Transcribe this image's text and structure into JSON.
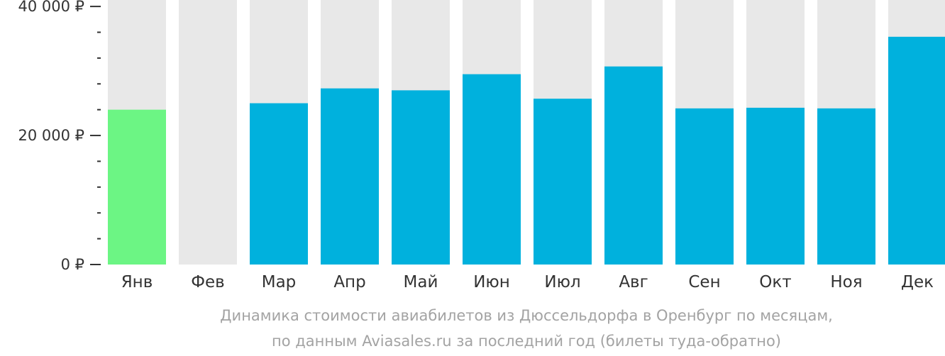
{
  "chart_data": {
    "type": "bar",
    "categories": [
      "Янв",
      "Фев",
      "Мар",
      "Апр",
      "Май",
      "Июн",
      "Июл",
      "Авг",
      "Сен",
      "Окт",
      "Ноя",
      "Дек"
    ],
    "values": [
      24000,
      null,
      25000,
      27300,
      27000,
      29500,
      25700,
      30700,
      24200,
      24300,
      24200,
      35300
    ],
    "highlight_index": 0,
    "ylim": [
      0,
      41000
    ],
    "y_ticks": [
      {
        "value": 0,
        "label": "0 ₽"
      },
      {
        "value": 20000,
        "label": "20 000 ₽"
      },
      {
        "value": 40000,
        "label": "40 000 ₽"
      }
    ],
    "minor_tick_step": 4000,
    "colors": {
      "bar": "#00b1dd",
      "highlight": "#6cf584",
      "background_bar": "#e8e8e8",
      "axis": "#333333"
    }
  },
  "caption": {
    "line1": "Динамика стоимости авиабилетов из Дюссельдорфа в Оренбург по месяцам,",
    "line2": "по данным Aviasales.ru за последний год (билеты туда-обратно)"
  }
}
